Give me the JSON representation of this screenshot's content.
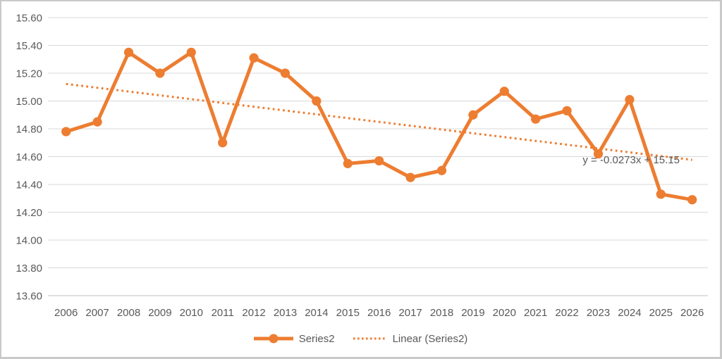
{
  "chart_data": {
    "type": "line",
    "title": "",
    "xlabel": "",
    "ylabel": "",
    "categories": [
      "2006",
      "2007",
      "2008",
      "2009",
      "2010",
      "2011",
      "2012",
      "2013",
      "2014",
      "2015",
      "2016",
      "2017",
      "2018",
      "2019",
      "2020",
      "2021",
      "2022",
      "2023",
      "2024",
      "2025",
      "2026"
    ],
    "series": [
      {
        "name": "Series2",
        "values": [
          14.78,
          14.85,
          15.35,
          15.2,
          15.35,
          14.7,
          15.31,
          15.2,
          15.0,
          14.55,
          14.57,
          14.45,
          14.5,
          14.9,
          15.07,
          14.87,
          14.93,
          14.62,
          15.01,
          14.33,
          14.29
        ],
        "color": "#ED7D31",
        "marker": "circle"
      }
    ],
    "trendline": {
      "legend_label": "Linear (Series2)",
      "equation_label": "y = -0.0273x + 15.15",
      "slope": -0.0273,
      "intercept": 15.15,
      "style": "dotted",
      "color": "#ED7D31"
    },
    "y_axis": {
      "min": 13.6,
      "max": 15.6,
      "step": 0.2,
      "tick_labels": [
        "15.60",
        "15.40",
        "15.20",
        "15.00",
        "14.80",
        "14.60",
        "14.40",
        "14.20",
        "14.00",
        "13.80",
        "13.60"
      ]
    },
    "legend": {
      "position": "bottom",
      "entries": [
        "Series2",
        "Linear (Series2)"
      ]
    },
    "grid": true,
    "colors": {
      "series": "#ED7D31",
      "gridline": "#D9D9D9",
      "axis_line": "#C0C0C0",
      "label_text": "#595959"
    }
  }
}
